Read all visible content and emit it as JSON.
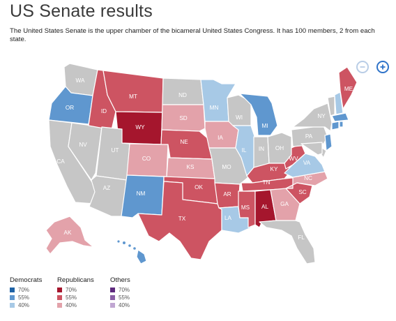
{
  "page": {
    "title": "US Senate results",
    "description": "The United States Senate is the upper chamber of the bicameral United States Congress. It has 100 members, 2 from each state."
  },
  "zoom": {
    "zoom_out_icon": "minus-circle-icon",
    "zoom_in_icon": "plus-circle-icon"
  },
  "colors": {
    "dem": {
      "70": "#1f62a5",
      "55": "#5f97cf",
      "40": "#a7c9e6"
    },
    "rep": {
      "70": "#a5162d",
      "55": "#cd5462",
      "40": "#e3a2aa"
    },
    "oth": {
      "70": "#5e2a7e",
      "55": "#8a5fa6",
      "40": "#c0a6d2"
    },
    "none": "#c6c6c6"
  },
  "legend": {
    "groups": [
      {
        "name": "Democrats",
        "key": "dem",
        "levels": [
          "70%",
          "55%",
          "40%"
        ]
      },
      {
        "name": "Republicans",
        "key": "rep",
        "levels": [
          "70%",
          "55%",
          "40%"
        ]
      },
      {
        "name": "Others",
        "key": "oth",
        "levels": [
          "70%",
          "55%",
          "40%"
        ]
      }
    ]
  },
  "states": {
    "WA": "none",
    "OR": "dem55",
    "CA": "none",
    "NV": "none",
    "ID": "rep55",
    "MT": "rep55",
    "WY": "rep70",
    "UT": "none",
    "AZ": "none",
    "CO": "rep40",
    "NM": "dem55",
    "ND": "none",
    "SD": "rep40",
    "NE": "rep55",
    "KS": "rep40",
    "OK": "rep55",
    "TX": "rep55",
    "MN": "dem40",
    "IA": "rep40",
    "MO": "none",
    "AR": "rep55",
    "LA": "dem40",
    "WI": "none",
    "IL": "dem40",
    "MI": "dem55",
    "IN": "none",
    "OH": "none",
    "KY": "rep55",
    "TN": "rep55",
    "MS": "rep55",
    "AL": "rep70",
    "GA": "rep40",
    "FL": "none",
    "SC": "rep55",
    "NC": "rep40",
    "VA": "dem40",
    "WV": "rep55",
    "PA": "none",
    "NY": "none",
    "VT": "none",
    "NH": "dem40",
    "ME": "rep55",
    "MA": "dem55",
    "CT": "dem55",
    "RI": "dem55",
    "NJ": "dem55",
    "DE": "none",
    "MD": "none",
    "AK": "rep40",
    "HI": "dem55"
  }
}
